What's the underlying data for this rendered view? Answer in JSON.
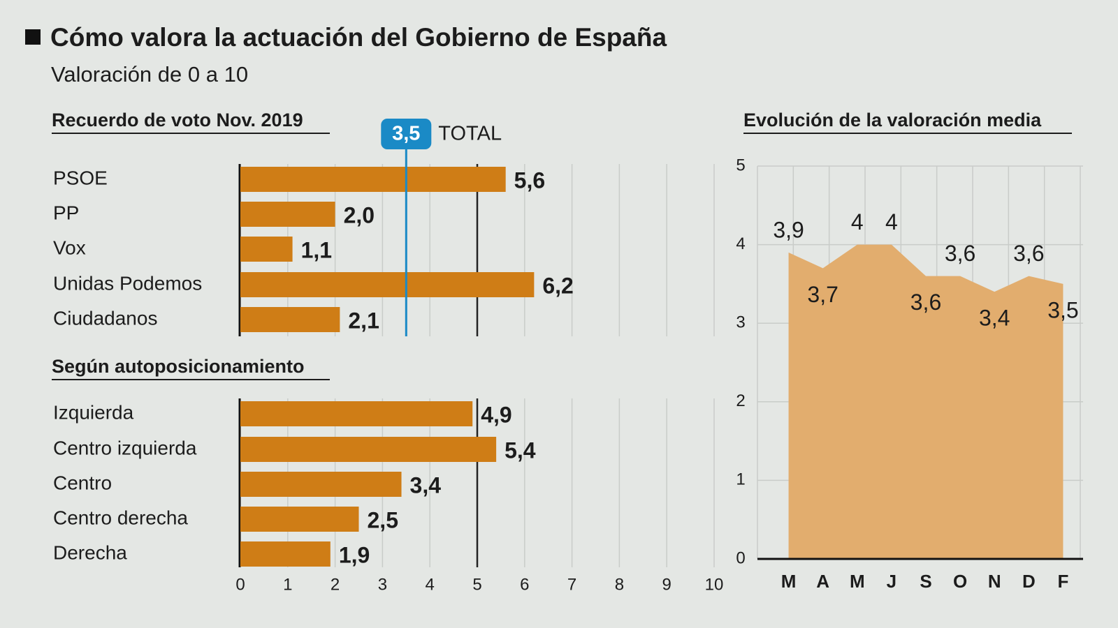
{
  "title": "Cómo valora la actuación del Gobierno de España",
  "subtitle": "Valoración de 0 a 10",
  "chart_data": [
    {
      "type": "hbar",
      "title": "Recuerdo de voto Nov. 2019",
      "categories": [
        "PSOE",
        "PP",
        "Vox",
        "Unidas Podemos",
        "Ciudadanos"
      ],
      "values": [
        5.6,
        2.0,
        1.1,
        6.2,
        2.1
      ],
      "value_labels": [
        "5,6",
        "2,0",
        "1,1",
        "6,2",
        "2,1"
      ],
      "color": "#cf7d16",
      "xlim": [
        0,
        10
      ],
      "xticks": [
        0,
        1,
        2,
        3,
        4,
        5,
        6,
        7,
        8,
        9,
        10
      ],
      "tick_labels": false,
      "grid": true,
      "divider": 5,
      "reference": {
        "value": 3.5,
        "label": "3,5",
        "name": "TOTAL",
        "color": "#1a8ac6"
      }
    },
    {
      "type": "hbar",
      "title": "Según autoposicionamiento",
      "categories": [
        "Izquierda",
        "Centro izquierda",
        "Centro",
        "Centro derecha",
        "Derecha"
      ],
      "values": [
        4.9,
        5.4,
        3.4,
        2.5,
        1.9
      ],
      "value_labels": [
        "4,9",
        "5,4",
        "3,4",
        "2,5",
        "1,9"
      ],
      "color": "#cf7d16",
      "xlim": [
        0,
        10
      ],
      "xticks": [
        0,
        1,
        2,
        3,
        4,
        5,
        6,
        7,
        8,
        9,
        10
      ],
      "tick_labels": true,
      "grid": true,
      "divider": 5
    },
    {
      "type": "area",
      "title": "Evolución de la valoración media",
      "categories": [
        "M",
        "A",
        "M",
        "J",
        "S",
        "O",
        "N",
        "D",
        "F"
      ],
      "values": [
        3.9,
        3.7,
        4,
        4,
        3.6,
        3.6,
        3.4,
        3.6,
        3.5
      ],
      "value_labels": [
        "3,9",
        "3,7",
        "4",
        "4",
        "3,6",
        "3,6",
        "3,4",
        "3,6",
        "3,5"
      ],
      "color": "#e2ad6e",
      "ylim": [
        0,
        5
      ],
      "yticks": [
        0,
        1,
        2,
        3,
        4,
        5
      ],
      "grid": true
    }
  ]
}
